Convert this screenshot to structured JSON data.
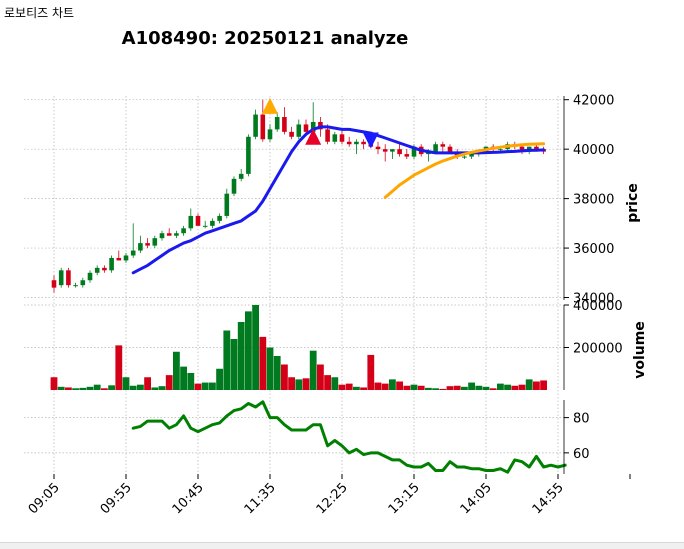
{
  "window": {
    "title": "로보티즈 차트"
  },
  "chart_data": {
    "type": "candlestick",
    "title": "A108490: 20250121 analyze",
    "x_ticks": [
      "09:05",
      "09:55",
      "10:45",
      "11:35",
      "12:25",
      "13:15",
      "14:05",
      "14:55"
    ],
    "price_panel": {
      "ylabel": "price",
      "yticks": [
        34000,
        36000,
        38000,
        40000,
        42000
      ],
      "ylim": [
        33900,
        42150
      ],
      "candles": [
        [
          34700,
          34900,
          34200,
          34400
        ],
        [
          34500,
          35200,
          34400,
          35100
        ],
        [
          35100,
          35200,
          34400,
          34500
        ],
        [
          34500,
          34600,
          34400,
          34500
        ],
        [
          34500,
          34800,
          34400,
          34700
        ],
        [
          34700,
          35100,
          34600,
          35000
        ],
        [
          35000,
          35300,
          34900,
          35200
        ],
        [
          35200,
          35300,
          35000,
          35100
        ],
        [
          35100,
          35700,
          35000,
          35600
        ],
        [
          35600,
          35900,
          35500,
          35500
        ],
        [
          35500,
          35800,
          35400,
          35700
        ],
        [
          35700,
          37000,
          35600,
          35900
        ],
        [
          35900,
          36500,
          35800,
          36200
        ],
        [
          36200,
          36400,
          36000,
          36100
        ],
        [
          36100,
          36500,
          36000,
          36400
        ],
        [
          36400,
          36700,
          36300,
          36600
        ],
        [
          36600,
          36800,
          36500,
          36500
        ],
        [
          36500,
          36700,
          36400,
          36600
        ],
        [
          36600,
          36900,
          36500,
          36800
        ],
        [
          36800,
          37600,
          36700,
          37300
        ],
        [
          37300,
          37400,
          36900,
          36900
        ],
        [
          36900,
          37100,
          36800,
          36900
        ],
        [
          36900,
          37200,
          36800,
          37100
        ],
        [
          37100,
          37400,
          37000,
          37300
        ],
        [
          37300,
          38400,
          37200,
          38200
        ],
        [
          38200,
          38900,
          38100,
          38800
        ],
        [
          38800,
          39200,
          38700,
          39000
        ],
        [
          39000,
          40600,
          38900,
          40500
        ],
        [
          40500,
          41600,
          40400,
          41400
        ],
        [
          41400,
          42000,
          40300,
          40400
        ],
        [
          40400,
          41000,
          40300,
          40800
        ],
        [
          40800,
          41500,
          40700,
          41300
        ],
        [
          41300,
          41700,
          40600,
          40700
        ],
        [
          40700,
          40900,
          40400,
          40500
        ],
        [
          40500,
          41200,
          40400,
          41000
        ],
        [
          41000,
          41200,
          40600,
          40700
        ],
        [
          40700,
          41900,
          40600,
          41100
        ],
        [
          41100,
          41300,
          40500,
          40800
        ],
        [
          40800,
          41000,
          40200,
          40300
        ],
        [
          40300,
          40700,
          40200,
          40600
        ],
        [
          40600,
          40800,
          40200,
          40300
        ],
        [
          40300,
          40500,
          40100,
          40200
        ],
        [
          40200,
          40400,
          39800,
          40300
        ],
        [
          40300,
          40400,
          40000,
          40200
        ],
        [
          40200,
          40300,
          40100,
          40100
        ],
        [
          40100,
          40300,
          39800,
          40000
        ],
        [
          40000,
          40200,
          39500,
          39900
        ],
        [
          39900,
          40000,
          39600,
          40000
        ],
        [
          40000,
          40200,
          39700,
          39800
        ],
        [
          39800,
          40000,
          39600,
          39700
        ],
        [
          39700,
          40200,
          39600,
          40100
        ],
        [
          40100,
          40200,
          39700,
          39800
        ],
        [
          39800,
          40000,
          39500,
          39900
        ],
        [
          39900,
          40300,
          39800,
          40200
        ],
        [
          40200,
          40300,
          39900,
          40100
        ],
        [
          40100,
          40200,
          39900,
          39900
        ],
        [
          39900,
          40000,
          39600,
          39700
        ],
        [
          39700,
          39800,
          39600,
          39700
        ],
        [
          39700,
          39900,
          39600,
          39800
        ],
        [
          39800,
          40000,
          39700,
          39900
        ],
        [
          39900,
          40100,
          39800,
          40100
        ],
        [
          40100,
          40200,
          39900,
          40000
        ],
        [
          40000,
          40100,
          39900,
          40000
        ],
        [
          40000,
          40300,
          39900,
          40200
        ],
        [
          40200,
          40300,
          40000,
          40100
        ],
        [
          40100,
          40200,
          39800,
          39900
        ],
        [
          39900,
          40100,
          39800,
          40100
        ],
        [
          40100,
          40200,
          39900,
          40000
        ],
        [
          40000,
          40100,
          39800,
          39900
        ]
      ],
      "ma_short": {
        "start": 11,
        "values": [
          35000,
          35150,
          35300,
          35500,
          35700,
          35900,
          36050,
          36200,
          36300,
          36450,
          36600,
          36700,
          36800,
          36900,
          37000,
          37100,
          37300,
          37500,
          37900,
          38400,
          38900,
          39400,
          39900,
          40300,
          40600,
          40800,
          40900,
          40900,
          40850,
          40800,
          40800,
          40750,
          40700,
          40650,
          40550,
          40450,
          40350,
          40250,
          40150,
          40050,
          39950,
          39900,
          39850,
          39850,
          39850,
          39850,
          39850,
          39850,
          39850,
          39860,
          39870,
          39880,
          39900,
          39910,
          39930,
          39950,
          39960,
          39970
        ]
      },
      "ma_long": {
        "start": 46,
        "values": [
          38050,
          38300,
          38550,
          38750,
          38950,
          39100,
          39250,
          39400,
          39520,
          39620,
          39720,
          39800,
          39870,
          39930,
          39980,
          40030,
          40080,
          40120,
          40150,
          40180,
          40200,
          40210,
          40220
        ]
      },
      "markers": [
        {
          "type": "buy",
          "color": "#ffaa00",
          "index": 30,
          "price": 41750
        },
        {
          "type": "buy",
          "color": "#e8002a",
          "index": 36,
          "price": 40500
        },
        {
          "type": "sell",
          "color": "#1a1aff",
          "index": 44,
          "price": 40350
        }
      ]
    },
    "volume_panel": {
      "ylabel": "volume",
      "yticks": [
        200000,
        400000
      ],
      "ylim": [
        0,
        400000
      ],
      "values": [
        60000,
        15000,
        12000,
        8000,
        10000,
        15000,
        25000,
        8000,
        22000,
        210000,
        60000,
        20000,
        25000,
        60000,
        12000,
        18000,
        70000,
        180000,
        110000,
        80000,
        30000,
        35000,
        35000,
        100000,
        280000,
        240000,
        320000,
        370000,
        400000,
        250000,
        200000,
        160000,
        120000,
        60000,
        50000,
        55000,
        185000,
        120000,
        70000,
        60000,
        25000,
        30000,
        15000,
        12000,
        165000,
        35000,
        30000,
        50000,
        40000,
        20000,
        25000,
        20000,
        10000,
        8000,
        5000,
        18000,
        20000,
        15000,
        35000,
        20000,
        15000,
        8000,
        30000,
        25000,
        20000,
        25000,
        50000,
        40000,
        45000
      ]
    },
    "osc_panel": {
      "yticks": [
        60,
        80
      ],
      "ylim": [
        48,
        90
      ],
      "start": 11,
      "values": [
        74,
        75,
        78,
        78,
        78,
        74,
        76,
        81,
        74,
        72,
        74,
        76,
        77,
        81,
        84,
        85,
        88,
        86,
        89,
        80,
        80,
        76,
        73,
        73,
        73,
        76,
        76,
        64,
        67,
        64,
        60,
        62,
        59,
        60,
        60,
        58,
        56,
        56,
        53,
        52,
        52,
        54,
        50,
        50,
        55,
        52,
        52,
        51,
        51,
        50,
        50,
        51,
        49,
        56,
        55,
        52,
        58,
        52,
        53,
        52,
        53
      ]
    },
    "colors": {
      "up": "#007a1f",
      "down": "#d40018",
      "ma_short": "#1a1aee",
      "ma_long": "#ffa500",
      "osc": "#008000",
      "grid": "#b5b5b5"
    }
  }
}
